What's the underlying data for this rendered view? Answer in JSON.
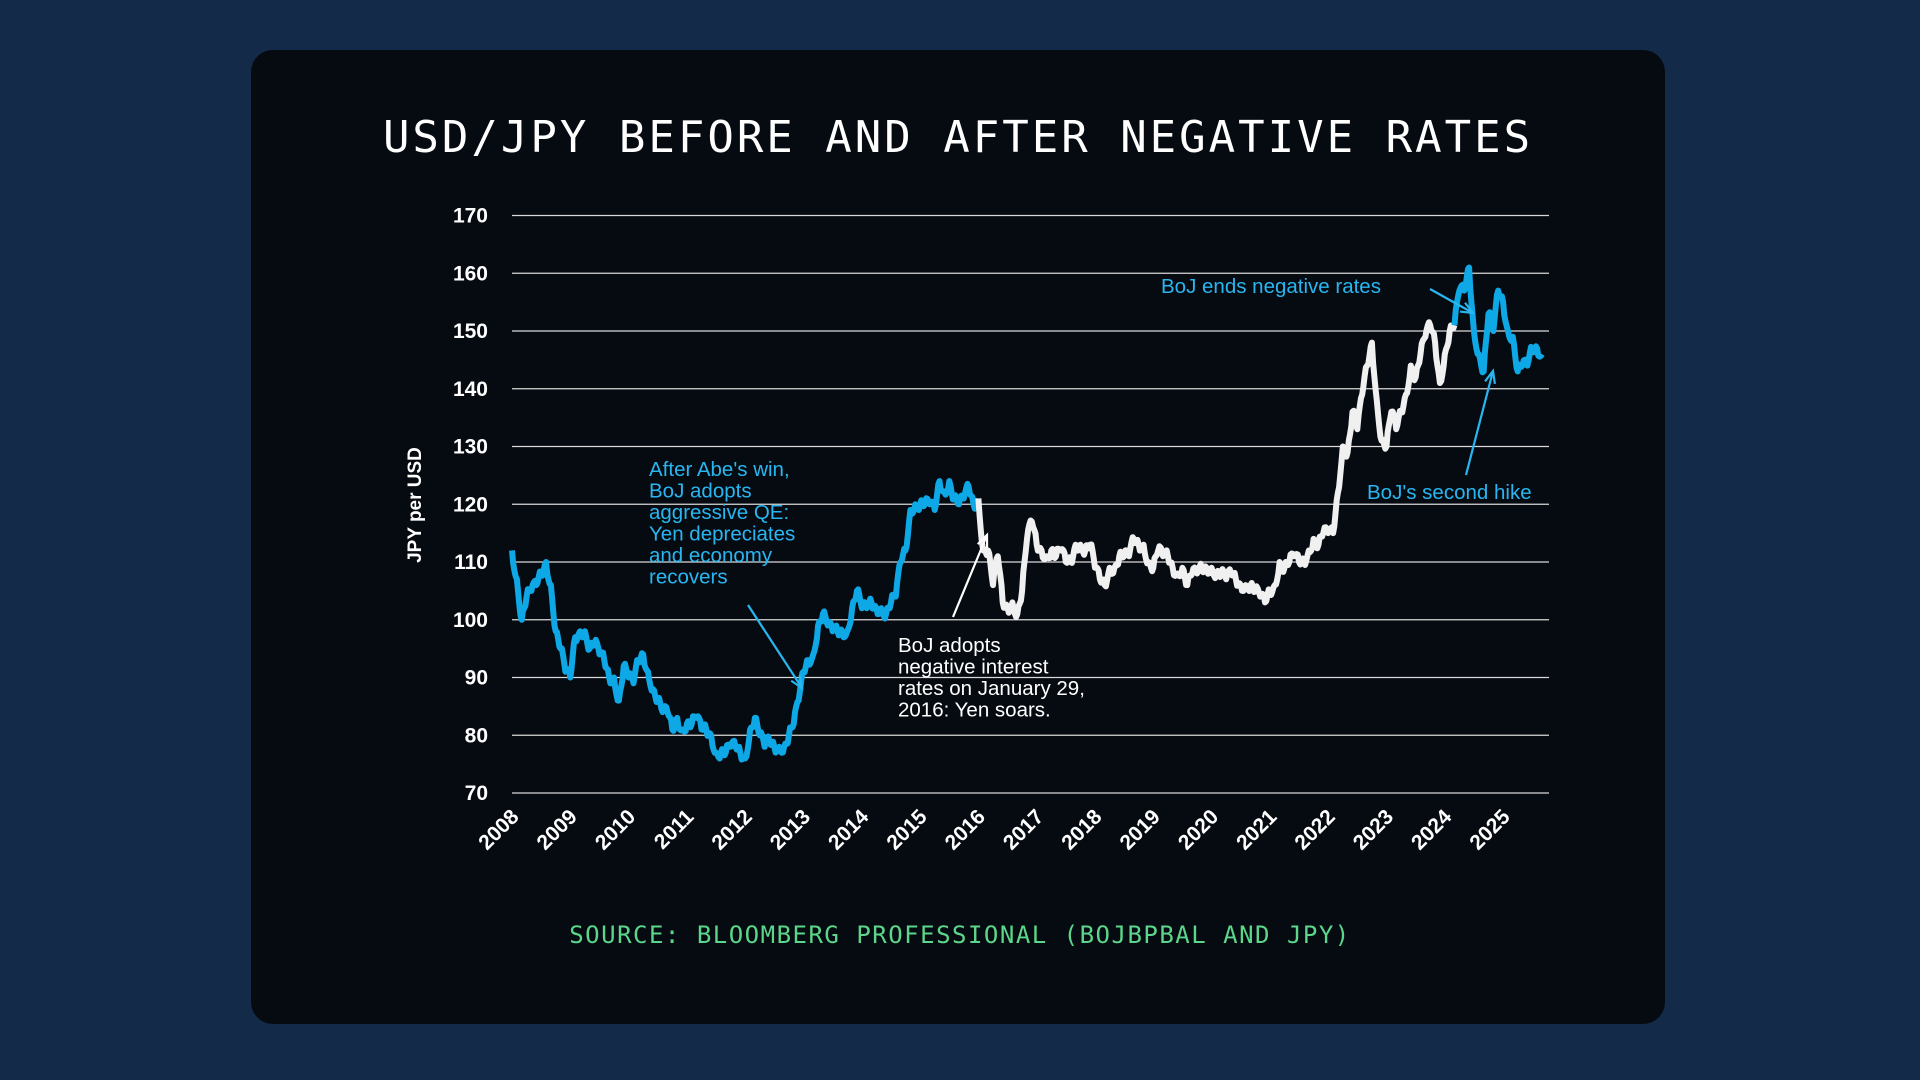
{
  "chart_data": {
    "type": "line",
    "title": "USD/JPY BEFORE AND AFTER NEGATIVE RATES",
    "ylabel": "JPY per USD",
    "xlabel": "",
    "ylim": [
      70,
      170
    ],
    "yticks": [
      "70",
      "80",
      "90",
      "100",
      "110",
      "120",
      "130",
      "140",
      "150",
      "160",
      "170"
    ],
    "xticks": [
      "2008",
      "2009",
      "2010",
      "2011",
      "2012",
      "2013",
      "2014",
      "2015",
      "2016",
      "2017",
      "2018",
      "2019",
      "2020",
      "2021",
      "2022",
      "2023",
      "2024",
      "2025"
    ],
    "grid": true,
    "colors": {
      "highlight": "#0fa8e6",
      "base": "#f0f0f0",
      "annotation_blue": "#29b6f0",
      "annotation_white": "#ffffff",
      "source": "#5cd68a"
    },
    "segments": [
      {
        "color": "highlight",
        "start": "2008-01",
        "end": "2016-01"
      },
      {
        "color": "base",
        "start": "2016-01",
        "end": "2024-03"
      },
      {
        "color": "highlight",
        "start": "2024-03",
        "end": "2025-09"
      }
    ],
    "x_start": "2008-01",
    "x_step": "month",
    "values": [
      112,
      107,
      100,
      104,
      105,
      106,
      108,
      110,
      106,
      98,
      95,
      91,
      90,
      97,
      98,
      98,
      95,
      96,
      94,
      93,
      90,
      90,
      86,
      92,
      90,
      89,
      93,
      94,
      91,
      88,
      86,
      84,
      84,
      81,
      83,
      81,
      82,
      82,
      83,
      81,
      81,
      80,
      77,
      77,
      77,
      78,
      78,
      77,
      76,
      81,
      83,
      80,
      78,
      79,
      78,
      78,
      78,
      80,
      82,
      86,
      91,
      93,
      94,
      99,
      101,
      99,
      98,
      98,
      98,
      98,
      102,
      105,
      102,
      102,
      103,
      102,
      102,
      101,
      103,
      104,
      110,
      112,
      119,
      120,
      120,
      120,
      120,
      119,
      124,
      122,
      124,
      121,
      120,
      121,
      123,
      120,
      121,
      112,
      112,
      106,
      111,
      103,
      102,
      103,
      101,
      105,
      114,
      117,
      113,
      112,
      111,
      112,
      111,
      112,
      110,
      110,
      113,
      113,
      112,
      113,
      109,
      107,
      106,
      109,
      109,
      111,
      111,
      111,
      114,
      113,
      113,
      110,
      109,
      112,
      111,
      111,
      109,
      108,
      109,
      106,
      108,
      108,
      109,
      109,
      109,
      108,
      108,
      107,
      108,
      107,
      106,
      106,
      106,
      105,
      104,
      103,
      105,
      106,
      110,
      109,
      110,
      111,
      110,
      110,
      112,
      114,
      113,
      115,
      115,
      115,
      122,
      130,
      129,
      136,
      133,
      139,
      144,
      148,
      138,
      131,
      130,
      136,
      133,
      136,
      139,
      144,
      142,
      146,
      149,
      151,
      148,
      141,
      146,
      150,
      151,
      157,
      157,
      161,
      150,
      146,
      143,
      153,
      150,
      157,
      155,
      150,
      149,
      143,
      144,
      144,
      147,
      147,
      146
    ],
    "annotations": [
      {
        "id": "abe",
        "lines": [
          "After Abe's win,",
          "BoJ adopts",
          "aggressive QE:",
          "Yen depreciates",
          "and economy",
          "recovers"
        ],
        "color": "annotation_blue"
      },
      {
        "id": "negative",
        "lines": [
          "BoJ adopts",
          "negative interest",
          "rates on January 29,",
          "2016: Yen soars."
        ],
        "color": "annotation_white"
      },
      {
        "id": "ends",
        "lines": [
          "BoJ ends negative rates"
        ],
        "color": "annotation_blue"
      },
      {
        "id": "hike",
        "lines": [
          "BoJ's second hike"
        ],
        "color": "annotation_blue"
      }
    ],
    "source": "SOURCE: BLOOMBERG PROFESSIONAL (BOJBPBAL AND JPY)"
  }
}
